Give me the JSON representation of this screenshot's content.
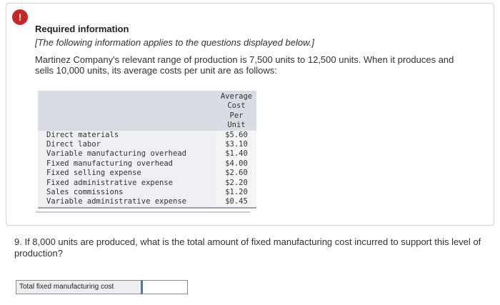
{
  "alert_icon": {
    "glyph": "!",
    "color": "#c62828"
  },
  "required": {
    "title": "Required information",
    "note": "[The following information applies to the questions displayed below.]",
    "intro": "Martinez Company's relevant range of production is 7,500 units to 12,500 units. When it produces and sells 10,000 units, its average costs per unit are as follows:"
  },
  "cost_table": {
    "header": "Average Cost Per Unit",
    "rows": [
      {
        "label": "Direct materials",
        "value": "$5.60"
      },
      {
        "label": "Direct labor",
        "value": "$3.10"
      },
      {
        "label": "Variable manufacturing overhead",
        "value": "$1.40"
      },
      {
        "label": "Fixed manufacturing overhead",
        "value": "$4.00"
      },
      {
        "label": "Fixed selling expense",
        "value": "$2.60"
      },
      {
        "label": "Fixed administrative expense",
        "value": "$2.20"
      },
      {
        "label": "Sales commissions",
        "value": "$1.20"
      },
      {
        "label": "Variable administrative expense",
        "value": "$0.45"
      }
    ]
  },
  "question": {
    "text": "9. If 8,000 units are produced, what is the total amount of fixed manufacturing cost incurred to support this level of production?",
    "answer_label": "Total fixed manufacturing cost",
    "answer_value": ""
  }
}
